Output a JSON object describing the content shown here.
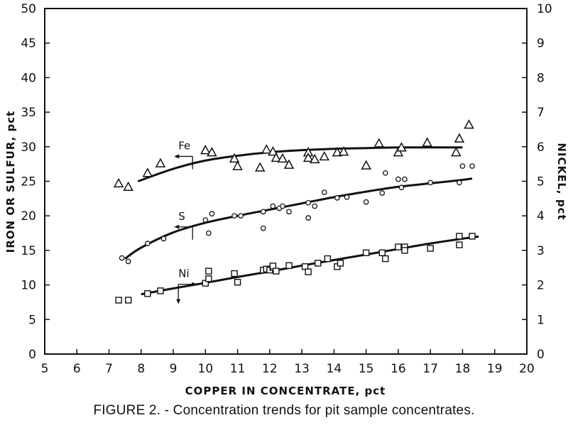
{
  "chart_data": {
    "type": "scatter",
    "caption": "FIGURE 2. - Concentration trends for pit sample concentrates.",
    "xlabel": "COPPER IN CONCENTRATE, pct",
    "ylabel_left": "IRON OR SULFUR, pct",
    "ylabel_right": "NICKEL, pct",
    "xlim": [
      5,
      20
    ],
    "ylim_left": [
      0,
      50
    ],
    "ylim_right": [
      0,
      10
    ],
    "x_ticks": [
      "5",
      "6",
      "7",
      "8",
      "9",
      "10",
      "11",
      "12",
      "13",
      "14",
      "15",
      "16",
      "17",
      "18",
      "19",
      "20"
    ],
    "y_ticks_left": [
      "0",
      "5",
      "10",
      "15",
      "20",
      "25",
      "30",
      "35",
      "40",
      "45",
      "50"
    ],
    "y_ticks_right": [
      "0",
      "1",
      "2",
      "3",
      "4",
      "5",
      "6",
      "7",
      "8",
      "9",
      "10"
    ],
    "grid": false,
    "series": [
      {
        "name": "Fe",
        "marker": "triangle",
        "axis": "left",
        "points": [
          [
            7.3,
            24.7
          ],
          [
            7.6,
            24.2
          ],
          [
            8.2,
            26.2
          ],
          [
            8.6,
            27.6
          ],
          [
            10.0,
            29.5
          ],
          [
            10.2,
            29.2
          ],
          [
            10.9,
            28.3
          ],
          [
            11.0,
            27.2
          ],
          [
            11.7,
            27.0
          ],
          [
            11.9,
            29.6
          ],
          [
            12.1,
            29.3
          ],
          [
            12.2,
            28.4
          ],
          [
            12.4,
            28.3
          ],
          [
            12.6,
            27.4
          ],
          [
            13.2,
            29.2
          ],
          [
            13.2,
            28.4
          ],
          [
            13.4,
            28.2
          ],
          [
            13.7,
            28.6
          ],
          [
            14.1,
            29.2
          ],
          [
            14.3,
            29.3
          ],
          [
            15.0,
            27.3
          ],
          [
            15.4,
            30.5
          ],
          [
            16.0,
            29.2
          ],
          [
            16.1,
            29.9
          ],
          [
            16.9,
            30.6
          ],
          [
            17.8,
            29.2
          ],
          [
            17.9,
            31.2
          ],
          [
            18.2,
            33.2
          ]
        ],
        "trend": [
          [
            7.9,
            25.0
          ],
          [
            9.0,
            26.8
          ],
          [
            10.0,
            28.0
          ],
          [
            11.0,
            28.7
          ],
          [
            12.0,
            29.2
          ],
          [
            13.0,
            29.5
          ],
          [
            14.0,
            29.7
          ],
          [
            15.0,
            29.8
          ],
          [
            16.0,
            29.9
          ],
          [
            17.0,
            29.9
          ],
          [
            18.0,
            29.9
          ]
        ]
      },
      {
        "name": "S",
        "marker": "circle",
        "axis": "left",
        "points": [
          [
            7.4,
            13.9
          ],
          [
            7.6,
            13.4
          ],
          [
            8.2,
            16.0
          ],
          [
            8.7,
            16.7
          ],
          [
            10.0,
            19.4
          ],
          [
            10.1,
            17.5
          ],
          [
            10.2,
            20.3
          ],
          [
            10.9,
            20.0
          ],
          [
            11.1,
            20.0
          ],
          [
            11.8,
            18.2
          ],
          [
            11.8,
            20.6
          ],
          [
            12.1,
            21.4
          ],
          [
            12.3,
            21.1
          ],
          [
            12.4,
            21.4
          ],
          [
            12.6,
            20.6
          ],
          [
            13.2,
            21.9
          ],
          [
            13.2,
            19.7
          ],
          [
            13.4,
            21.4
          ],
          [
            13.7,
            23.4
          ],
          [
            14.1,
            22.6
          ],
          [
            14.4,
            22.7
          ],
          [
            15.0,
            22.0
          ],
          [
            15.5,
            23.3
          ],
          [
            15.6,
            26.2
          ],
          [
            16.0,
            25.3
          ],
          [
            16.1,
            24.1
          ],
          [
            16.2,
            25.3
          ],
          [
            17.0,
            24.8
          ],
          [
            17.9,
            24.8
          ],
          [
            18.0,
            27.2
          ],
          [
            18.3,
            27.2
          ]
        ],
        "trend": [
          [
            7.5,
            13.8
          ],
          [
            8.0,
            15.4
          ],
          [
            9.0,
            17.6
          ],
          [
            10.0,
            19.0
          ],
          [
            11.0,
            20.0
          ],
          [
            12.0,
            20.9
          ],
          [
            13.0,
            21.8
          ],
          [
            14.0,
            22.7
          ],
          [
            15.0,
            23.5
          ],
          [
            16.0,
            24.2
          ],
          [
            17.0,
            24.7
          ],
          [
            18.0,
            25.2
          ],
          [
            18.3,
            25.4
          ]
        ]
      },
      {
        "name": "Ni",
        "marker": "square",
        "axis": "right",
        "points": [
          [
            7.3,
            1.56
          ],
          [
            7.6,
            1.56
          ],
          [
            8.2,
            1.75
          ],
          [
            8.6,
            1.83
          ],
          [
            10.0,
            2.05
          ],
          [
            10.1,
            2.18
          ],
          [
            10.1,
            2.4
          ],
          [
            10.9,
            2.33
          ],
          [
            11.0,
            2.08
          ],
          [
            11.8,
            2.43
          ],
          [
            11.9,
            2.46
          ],
          [
            12.0,
            2.43
          ],
          [
            12.1,
            2.5
          ],
          [
            12.1,
            2.55
          ],
          [
            12.2,
            2.4
          ],
          [
            12.6,
            2.56
          ],
          [
            13.1,
            2.53
          ],
          [
            13.2,
            2.38
          ],
          [
            13.5,
            2.63
          ],
          [
            13.8,
            2.76
          ],
          [
            14.1,
            2.53
          ],
          [
            14.2,
            2.63
          ],
          [
            15.0,
            2.93
          ],
          [
            15.5,
            2.93
          ],
          [
            15.6,
            2.76
          ],
          [
            16.0,
            3.1
          ],
          [
            16.2,
            3.1
          ],
          [
            16.2,
            3.0
          ],
          [
            17.0,
            3.06
          ],
          [
            17.9,
            3.16
          ],
          [
            17.9,
            3.41
          ],
          [
            18.3,
            3.41
          ]
        ],
        "trend": [
          [
            8.0,
            1.73
          ],
          [
            9.0,
            1.9
          ],
          [
            10.0,
            2.06
          ],
          [
            11.0,
            2.23
          ],
          [
            12.0,
            2.39
          ],
          [
            13.0,
            2.56
          ],
          [
            14.0,
            2.72
          ],
          [
            15.0,
            2.88
          ],
          [
            16.0,
            3.04
          ],
          [
            17.0,
            3.2
          ],
          [
            18.0,
            3.34
          ],
          [
            18.5,
            3.4
          ]
        ]
      }
    ],
    "annotations": [
      {
        "label": "Fe",
        "arrow": "left-axis",
        "x": 9.6,
        "y": 28.6
      },
      {
        "label": "S",
        "arrow": "left-axis",
        "x": 9.6,
        "y": 18.4
      },
      {
        "label": "Ni",
        "arrow": "right-axis",
        "x": 9.6,
        "y": 2.02
      }
    ]
  }
}
